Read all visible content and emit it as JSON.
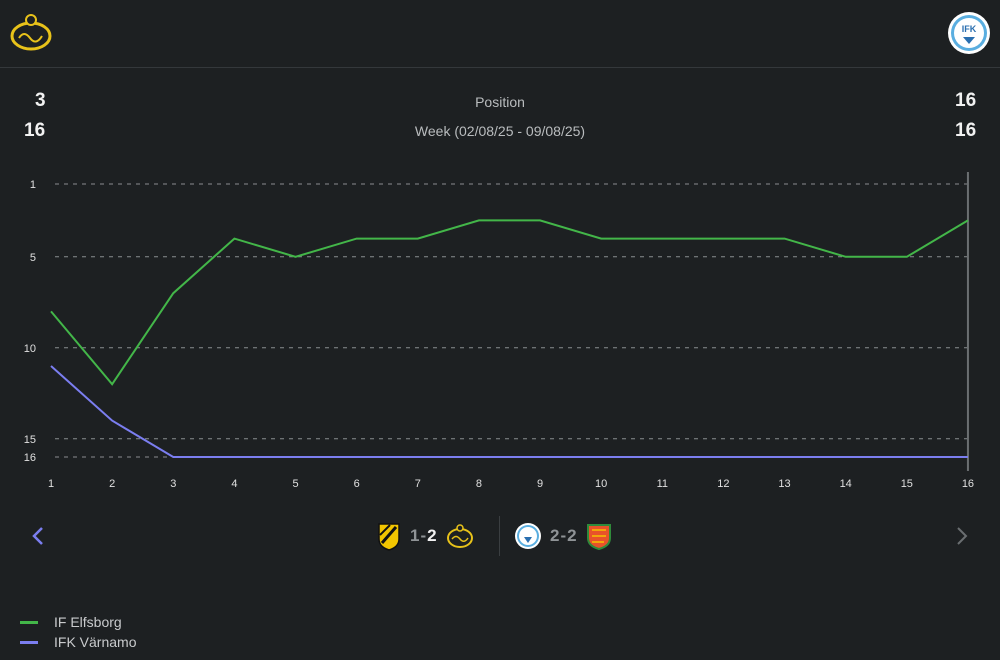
{
  "header": {
    "home_team_icon": "if-elfsborg-crest-icon",
    "away_team_icon": "ifk-varnamo-crest-icon",
    "away_crest_text": "IFK"
  },
  "summary": {
    "title": "Position",
    "subtitle": "Week (02/08/25 - 09/08/25)",
    "home_position": "3",
    "home_total": "16",
    "away_position": "16",
    "away_total": "16"
  },
  "colors": {
    "home": "#43b649",
    "away": "#7b7ef0",
    "background": "#1d2022",
    "grid": "#8a8d90"
  },
  "chart_data": {
    "type": "line",
    "title": "Position",
    "x": [
      1,
      2,
      3,
      4,
      5,
      6,
      7,
      8,
      9,
      10,
      11,
      12,
      13,
      14,
      15,
      16
    ],
    "y_ticks": [
      1,
      5,
      10,
      15,
      16
    ],
    "ylim": [
      16,
      1
    ],
    "y_inverted": true,
    "grid": "horizontal dashed",
    "legend_position": "bottom-left",
    "series": [
      {
        "name": "IF Elfsborg",
        "color": "#43b649",
        "values": [
          8,
          12,
          7,
          4,
          5,
          4,
          4,
          3,
          3,
          4,
          4,
          4,
          4,
          5,
          5,
          3
        ]
      },
      {
        "name": "IFK Värnamo",
        "color": "#7b7ef0",
        "values": [
          11,
          14,
          16,
          16,
          16,
          16,
          16,
          16,
          16,
          16,
          16,
          16,
          16,
          16,
          16,
          16
        ]
      }
    ]
  },
  "navigation": {
    "prev_icon": "chevron-left-icon",
    "next_icon": "chevron-right-icon"
  },
  "matches": [
    {
      "home_icon": "bk-hacken-crest-icon",
      "home_score": "1",
      "sep": "-",
      "away_score": "2",
      "away_icon": "if-elfsborg-crest-icon",
      "winner": "away"
    },
    {
      "home_icon": "ifk-varnamo-crest-icon",
      "home_score": "2",
      "sep": "-",
      "away_score": "2",
      "away_icon": "degerfors-crest-icon",
      "winner": "none"
    }
  ],
  "legend": [
    {
      "label": "IF Elfsborg",
      "color": "#43b649"
    },
    {
      "label": "IFK Värnamo",
      "color": "#7b7ef0"
    }
  ]
}
